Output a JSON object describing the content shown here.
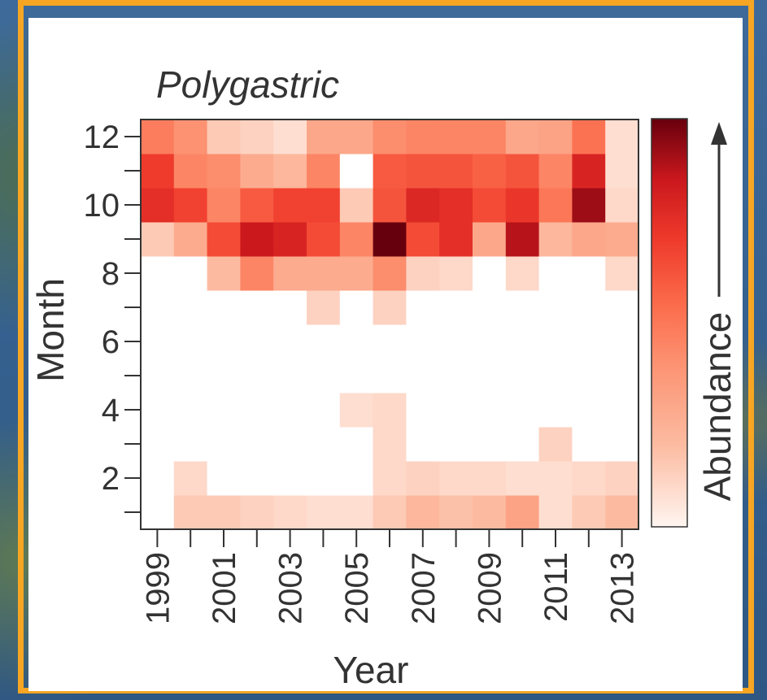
{
  "chart_data": {
    "type": "heatmap",
    "title": "Polygastric",
    "xlabel": "Year",
    "ylabel": "Month",
    "colorbar_label": "Abundance",
    "x": [
      1999,
      2000,
      2001,
      2002,
      2003,
      2004,
      2005,
      2006,
      2007,
      2008,
      2009,
      2010,
      2011,
      2012,
      2013
    ],
    "x_tick_labels": [
      "1999",
      "2001",
      "2003",
      "2005",
      "2007",
      "2009",
      "2011",
      "2013"
    ],
    "y": [
      1,
      2,
      3,
      4,
      5,
      6,
      7,
      8,
      9,
      10,
      11,
      12
    ],
    "y_tick_labels": [
      "2",
      "4",
      "6",
      "8",
      "10",
      "12"
    ],
    "xlim": [
      1998.5,
      2013.5
    ],
    "ylim": [
      0.5,
      12.5
    ],
    "value_range": [
      0,
      1
    ],
    "colormap": [
      "#fff5f0",
      "#fcbba1",
      "#fc9272",
      "#fb6a4a",
      "#ef3b2c",
      "#cb181d",
      "#67000d"
    ],
    "values": [
      [
        0,
        0.15,
        0.15,
        0.12,
        0.1,
        0.08,
        0.08,
        0.15,
        0.22,
        0.18,
        0.2,
        0.32,
        0.08,
        0.15,
        0.2
      ],
      [
        0,
        0.1,
        0,
        0,
        0,
        0,
        0,
        0.1,
        0.12,
        0.1,
        0.1,
        0.08,
        0.08,
        0.1,
        0.12
      ],
      [
        0,
        0,
        0,
        0,
        0,
        0,
        0,
        0.1,
        0,
        0,
        0,
        0,
        0.12,
        0,
        0
      ],
      [
        0,
        0,
        0,
        0,
        0,
        0,
        0.08,
        0.1,
        0,
        0,
        0,
        0,
        0,
        0,
        0
      ],
      [
        0,
        0,
        0,
        0,
        0,
        0,
        0,
        0,
        0,
        0,
        0,
        0,
        0,
        0,
        0
      ],
      [
        0,
        0,
        0,
        0,
        0,
        0,
        0,
        0,
        0,
        0,
        0,
        0,
        0,
        0,
        0
      ],
      [
        0,
        0,
        0,
        0,
        0,
        0.12,
        0,
        0.12,
        0,
        0,
        0,
        0,
        0,
        0,
        0
      ],
      [
        0,
        0,
        0.2,
        0.45,
        0.28,
        0.28,
        0.28,
        0.42,
        0.12,
        0.1,
        0,
        0.1,
        0,
        0,
        0.1
      ],
      [
        0.15,
        0.28,
        0.65,
        0.85,
        0.8,
        0.65,
        0.45,
        1.0,
        0.65,
        0.75,
        0.3,
        0.88,
        0.22,
        0.3,
        0.28
      ],
      [
        0.75,
        0.68,
        0.45,
        0.6,
        0.68,
        0.68,
        0.15,
        0.62,
        0.78,
        0.75,
        0.65,
        0.72,
        0.5,
        0.92,
        0.1
      ],
      [
        0.7,
        0.45,
        0.42,
        0.28,
        0.22,
        0.45,
        0.0,
        0.6,
        0.62,
        0.62,
        0.58,
        0.62,
        0.45,
        0.8,
        0.08
      ],
      [
        0.48,
        0.4,
        0.15,
        0.12,
        0.08,
        0.3,
        0.3,
        0.42,
        0.45,
        0.45,
        0.45,
        0.3,
        0.32,
        0.52,
        0.08
      ]
    ]
  }
}
